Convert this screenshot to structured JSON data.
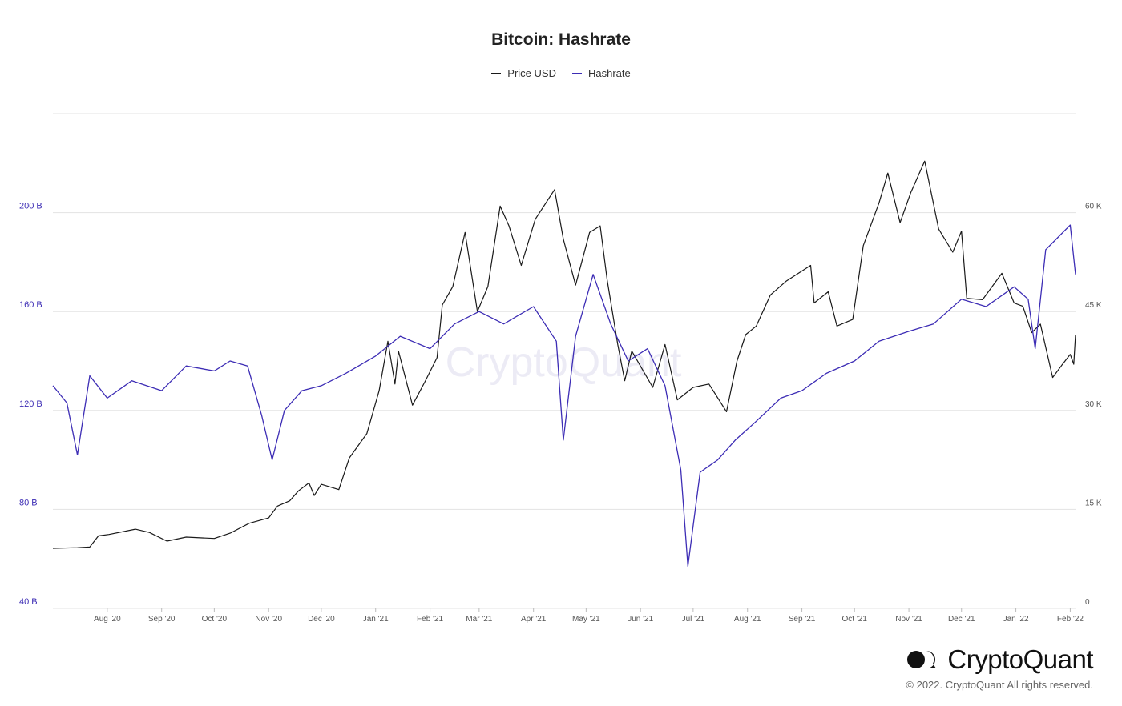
{
  "brand": {
    "name": "CryptoQuant",
    "watermark": "CryptoQuant",
    "copyright": "© 2022. CryptoQuant All rights reserved."
  },
  "colors": {
    "price": "#1a1a1a",
    "hashrate": "#3d2db5",
    "left_axis": "#3d2db5",
    "right_axis": "#555555",
    "grid": "#e3e3e3",
    "watermark": "#ecebf5"
  },
  "chart_data": {
    "type": "line",
    "title": "Bitcoin: Hashrate",
    "legend": [
      "Price USD",
      "Hashrate"
    ],
    "legend_position": "top-center",
    "grid": true,
    "x_range": [
      "2020-07-01",
      "2022-02-04"
    ],
    "x_ticks": [
      {
        "label": "Aug '20",
        "date": "2020-08-01"
      },
      {
        "label": "Sep '20",
        "date": "2020-09-01"
      },
      {
        "label": "Oct '20",
        "date": "2020-10-01"
      },
      {
        "label": "Nov '20",
        "date": "2020-11-01"
      },
      {
        "label": "Dec '20",
        "date": "2020-12-01"
      },
      {
        "label": "Jan '21",
        "date": "2021-01-01"
      },
      {
        "label": "Feb '21",
        "date": "2021-02-01"
      },
      {
        "label": "Mar '21",
        "date": "2021-03-01"
      },
      {
        "label": "Apr '21",
        "date": "2021-04-01"
      },
      {
        "label": "May '21",
        "date": "2021-05-01"
      },
      {
        "label": "Jun '21",
        "date": "2021-06-01"
      },
      {
        "label": "Jul '21",
        "date": "2021-07-01"
      },
      {
        "label": "Aug '21",
        "date": "2021-08-01"
      },
      {
        "label": "Sep '21",
        "date": "2021-09-01"
      },
      {
        "label": "Oct '21",
        "date": "2021-10-01"
      },
      {
        "label": "Nov '21",
        "date": "2021-11-01"
      },
      {
        "label": "Dec '21",
        "date": "2021-12-01"
      },
      {
        "label": "Jan '22",
        "date": "2022-01-01"
      },
      {
        "label": "Feb '22",
        "date": "2022-02-01"
      }
    ],
    "y_left": {
      "label": "Hashrate",
      "ylim": [
        40,
        240
      ],
      "ticks": [
        40,
        80,
        120,
        160,
        200
      ],
      "tick_labels": [
        "40 B",
        "80 B",
        "120 B",
        "160 B",
        "200 B"
      ]
    },
    "y_right": {
      "label": "Price USD",
      "ylim": [
        0,
        75000
      ],
      "ticks": [
        0,
        15000,
        30000,
        45000,
        60000
      ],
      "tick_labels": [
        "0",
        "15 K",
        "30 K",
        "45 K",
        "60 K"
      ]
    },
    "series": [
      {
        "name": "Price USD",
        "axis": "right",
        "points": [
          [
            "2020-07-01",
            9100
          ],
          [
            "2020-07-15",
            9200
          ],
          [
            "2020-07-22",
            9300
          ],
          [
            "2020-07-27",
            11000
          ],
          [
            "2020-08-02",
            11200
          ],
          [
            "2020-08-17",
            12000
          ],
          [
            "2020-08-25",
            11500
          ],
          [
            "2020-09-04",
            10200
          ],
          [
            "2020-09-15",
            10800
          ],
          [
            "2020-10-01",
            10600
          ],
          [
            "2020-10-10",
            11400
          ],
          [
            "2020-10-21",
            12900
          ],
          [
            "2020-11-01",
            13700
          ],
          [
            "2020-11-06",
            15500
          ],
          [
            "2020-11-13",
            16300
          ],
          [
            "2020-11-18",
            17800
          ],
          [
            "2020-11-24",
            19000
          ],
          [
            "2020-11-27",
            17100
          ],
          [
            "2020-12-01",
            18800
          ],
          [
            "2020-12-11",
            18000
          ],
          [
            "2020-12-17",
            22800
          ],
          [
            "2020-12-27",
            26500
          ],
          [
            "2021-01-03",
            33000
          ],
          [
            "2021-01-08",
            40500
          ],
          [
            "2021-01-12",
            34000
          ],
          [
            "2021-01-14",
            39000
          ],
          [
            "2021-01-22",
            30800
          ],
          [
            "2021-01-29",
            34300
          ],
          [
            "2021-02-05",
            38000
          ],
          [
            "2021-02-08",
            46000
          ],
          [
            "2021-02-14",
            48800
          ],
          [
            "2021-02-21",
            57000
          ],
          [
            "2021-02-28",
            45000
          ],
          [
            "2021-03-06",
            48800
          ],
          [
            "2021-03-13",
            61000
          ],
          [
            "2021-03-18",
            58000
          ],
          [
            "2021-03-25",
            52000
          ],
          [
            "2021-04-02",
            59000
          ],
          [
            "2021-04-13",
            63500
          ],
          [
            "2021-04-18",
            56000
          ],
          [
            "2021-04-25",
            49000
          ],
          [
            "2021-05-03",
            57000
          ],
          [
            "2021-05-09",
            58000
          ],
          [
            "2021-05-13",
            49800
          ],
          [
            "2021-05-19",
            40000
          ],
          [
            "2021-05-23",
            34500
          ],
          [
            "2021-05-27",
            39000
          ],
          [
            "2021-06-08",
            33500
          ],
          [
            "2021-06-15",
            40000
          ],
          [
            "2021-06-22",
            31600
          ],
          [
            "2021-07-01",
            33500
          ],
          [
            "2021-07-10",
            34000
          ],
          [
            "2021-07-20",
            29800
          ],
          [
            "2021-07-26",
            37500
          ],
          [
            "2021-07-31",
            41500
          ],
          [
            "2021-08-06",
            42800
          ],
          [
            "2021-08-14",
            47500
          ],
          [
            "2021-08-23",
            49600
          ],
          [
            "2021-09-06",
            52000
          ],
          [
            "2021-09-08",
            46300
          ],
          [
            "2021-09-16",
            48000
          ],
          [
            "2021-09-21",
            42800
          ],
          [
            "2021-09-30",
            43800
          ],
          [
            "2021-10-06",
            55000
          ],
          [
            "2021-10-15",
            61500
          ],
          [
            "2021-10-20",
            66000
          ],
          [
            "2021-10-27",
            58500
          ],
          [
            "2021-11-02",
            63000
          ],
          [
            "2021-11-10",
            67800
          ],
          [
            "2021-11-18",
            57500
          ],
          [
            "2021-11-26",
            54000
          ],
          [
            "2021-12-01",
            57200
          ],
          [
            "2021-12-04",
            47000
          ],
          [
            "2021-12-13",
            46800
          ],
          [
            "2021-12-24",
            50800
          ],
          [
            "2021-12-31",
            46300
          ],
          [
            "2022-01-05",
            45800
          ],
          [
            "2022-01-10",
            41800
          ],
          [
            "2022-01-15",
            43100
          ],
          [
            "2022-01-22",
            35000
          ],
          [
            "2022-01-27",
            36800
          ],
          [
            "2022-02-01",
            38500
          ],
          [
            "2022-02-03",
            37000
          ],
          [
            "2022-02-04",
            41500
          ]
        ]
      },
      {
        "name": "Hashrate",
        "axis": "left",
        "points": [
          [
            "2020-07-01",
            130
          ],
          [
            "2020-07-09",
            123
          ],
          [
            "2020-07-15",
            102
          ],
          [
            "2020-07-22",
            134
          ],
          [
            "2020-08-01",
            125
          ],
          [
            "2020-08-15",
            132
          ],
          [
            "2020-09-01",
            128
          ],
          [
            "2020-09-15",
            138
          ],
          [
            "2020-10-01",
            136
          ],
          [
            "2020-10-10",
            140
          ],
          [
            "2020-10-20",
            138
          ],
          [
            "2020-10-28",
            118
          ],
          [
            "2020-11-03",
            100
          ],
          [
            "2020-11-10",
            120
          ],
          [
            "2020-11-20",
            128
          ],
          [
            "2020-12-01",
            130
          ],
          [
            "2020-12-15",
            135
          ],
          [
            "2021-01-01",
            142
          ],
          [
            "2021-01-15",
            150
          ],
          [
            "2021-02-01",
            145
          ],
          [
            "2021-02-15",
            155
          ],
          [
            "2021-03-01",
            160
          ],
          [
            "2021-03-15",
            155
          ],
          [
            "2021-04-01",
            162
          ],
          [
            "2021-04-14",
            148
          ],
          [
            "2021-04-18",
            108
          ],
          [
            "2021-04-25",
            150
          ],
          [
            "2021-05-05",
            175
          ],
          [
            "2021-05-15",
            155
          ],
          [
            "2021-05-25",
            140
          ],
          [
            "2021-06-05",
            145
          ],
          [
            "2021-06-15",
            130
          ],
          [
            "2021-06-24",
            96
          ],
          [
            "2021-06-28",
            57
          ],
          [
            "2021-07-05",
            95
          ],
          [
            "2021-07-15",
            100
          ],
          [
            "2021-07-25",
            108
          ],
          [
            "2021-08-05",
            115
          ],
          [
            "2021-08-20",
            125
          ],
          [
            "2021-09-01",
            128
          ],
          [
            "2021-09-15",
            135
          ],
          [
            "2021-10-01",
            140
          ],
          [
            "2021-10-15",
            148
          ],
          [
            "2021-11-01",
            152
          ],
          [
            "2021-11-15",
            155
          ],
          [
            "2021-12-01",
            165
          ],
          [
            "2021-12-15",
            162
          ],
          [
            "2021-12-31",
            170
          ],
          [
            "2022-01-08",
            165
          ],
          [
            "2022-01-12",
            145
          ],
          [
            "2022-01-18",
            185
          ],
          [
            "2022-01-25",
            190
          ],
          [
            "2022-02-01",
            195
          ],
          [
            "2022-02-04",
            175
          ]
        ]
      }
    ]
  }
}
